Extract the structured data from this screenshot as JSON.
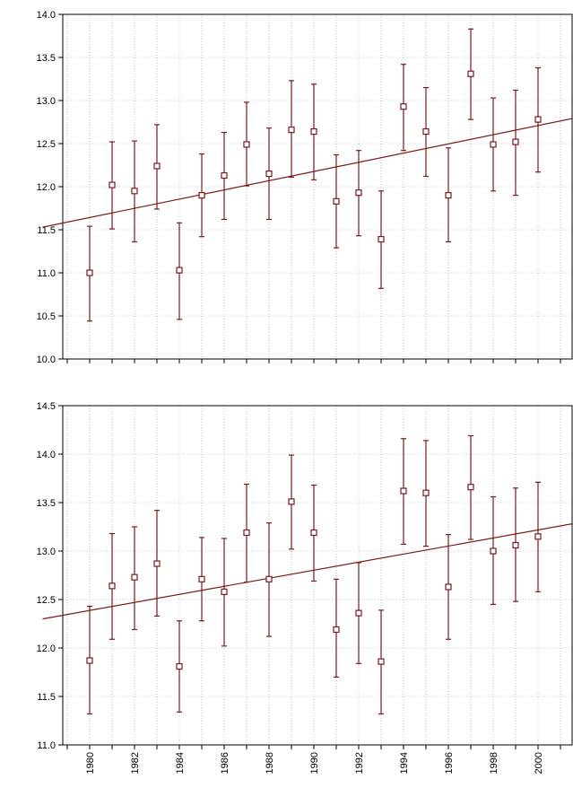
{
  "style": {
    "series_color": "#7a1a1a",
    "grid_color": "#9a9a9a",
    "axis_color": "#000000",
    "background": "#ffffff"
  },
  "chart_data": [
    {
      "type": "scatter",
      "title": "",
      "xlabel": "",
      "ylabel": "",
      "xlim": [
        1977.9,
        2001.5
      ],
      "ylim": [
        10.0,
        14.0
      ],
      "yticks": [
        10.0,
        10.5,
        11.0,
        11.5,
        12.0,
        12.5,
        13.0,
        13.5,
        14.0
      ],
      "grid": true,
      "x": [
        1980,
        1981,
        1982,
        1983,
        1984,
        1985,
        1986,
        1987,
        1988,
        1989,
        1990,
        1991,
        1992,
        1993,
        1994,
        1995,
        1996,
        1997,
        1998,
        1999,
        2000
      ],
      "y": [
        11.0,
        12.02,
        11.95,
        12.24,
        11.03,
        11.9,
        12.13,
        12.49,
        12.15,
        12.66,
        12.64,
        11.83,
        11.93,
        11.39,
        12.93,
        12.64,
        11.9,
        13.31,
        12.49,
        12.52,
        12.78
      ],
      "y_low": [
        10.44,
        11.51,
        11.36,
        11.74,
        10.46,
        11.42,
        11.62,
        12.01,
        11.62,
        12.11,
        12.08,
        11.29,
        11.43,
        10.82,
        12.42,
        12.12,
        11.36,
        12.78,
        11.95,
        11.9,
        12.17
      ],
      "y_high": [
        11.54,
        12.52,
        12.53,
        12.72,
        11.58,
        12.38,
        12.63,
        12.98,
        12.68,
        13.23,
        13.19,
        12.37,
        12.42,
        11.95,
        13.42,
        13.15,
        12.45,
        13.83,
        13.03,
        13.12,
        13.38
      ],
      "trendline": {
        "x": [
          1977.9,
          2001.5
        ],
        "y": [
          11.53,
          12.79
        ]
      }
    },
    {
      "type": "scatter",
      "title": "",
      "xlabel": "",
      "ylabel": "",
      "xlim": [
        1977.9,
        2001.5
      ],
      "ylim": [
        11.0,
        14.5
      ],
      "yticks": [
        11.0,
        11.5,
        12.0,
        12.5,
        13.0,
        13.5,
        14.0,
        14.5
      ],
      "xticks": [
        1980,
        1982,
        1984,
        1986,
        1988,
        1990,
        1992,
        1994,
        1996,
        1998,
        2000
      ],
      "grid": true,
      "x": [
        1980,
        1981,
        1982,
        1983,
        1984,
        1985,
        1986,
        1987,
        1988,
        1989,
        1990,
        1991,
        1992,
        1993,
        1994,
        1995,
        1996,
        1997,
        1998,
        1999,
        2000
      ],
      "y": [
        11.87,
        12.64,
        12.73,
        12.87,
        11.81,
        12.71,
        12.58,
        13.19,
        12.71,
        13.51,
        13.19,
        12.19,
        12.36,
        11.86,
        13.62,
        13.6,
        12.63,
        13.66,
        13.0,
        13.06,
        13.15
      ],
      "y_low": [
        11.32,
        12.09,
        12.19,
        12.33,
        11.34,
        12.28,
        12.02,
        12.68,
        12.12,
        13.02,
        12.69,
        11.7,
        11.84,
        11.32,
        13.07,
        13.05,
        12.09,
        13.12,
        12.45,
        12.48,
        12.58
      ],
      "y_high": [
        12.43,
        13.18,
        13.25,
        13.42,
        12.28,
        13.14,
        13.13,
        13.69,
        13.29,
        13.99,
        13.68,
        12.71,
        12.88,
        12.39,
        14.16,
        14.14,
        13.17,
        14.19,
        13.56,
        13.65,
        13.71
      ],
      "trendline": {
        "x": [
          1977.9,
          2001.5
        ],
        "y": [
          12.3,
          13.28
        ]
      }
    }
  ]
}
